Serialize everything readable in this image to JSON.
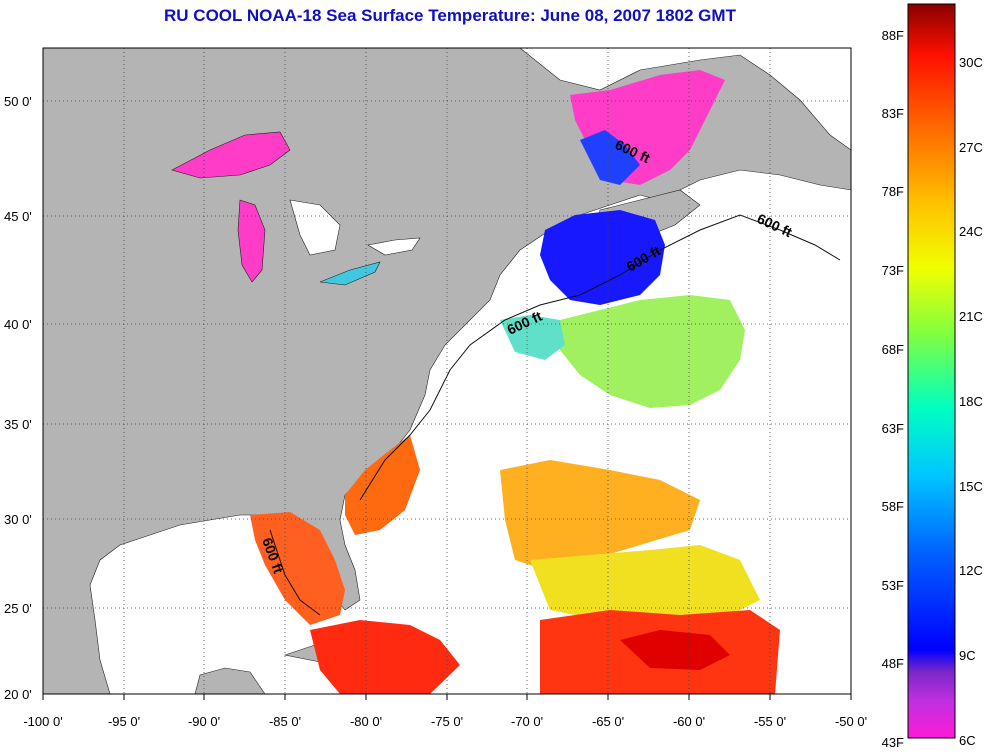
{
  "title": "RU COOL  NOAA-18  Sea Surface Temperature:  June 08, 2007 1802 GMT",
  "map": {
    "lon_labels": [
      "-100 0'",
      "-95 0'",
      "-90 0'",
      "-85 0'",
      "-80 0'",
      "-75 0'",
      "-70 0'",
      "-65 0'",
      "-60 0'",
      "-55 0'",
      "-50 0'"
    ],
    "lat_labels": [
      "50 0'",
      "45 0'",
      "40 0'",
      "35 0'",
      "30 0'",
      "25 0'",
      "20 0'"
    ],
    "contour_label": "600 ft",
    "colors": {
      "land": "#b4b4b4",
      "ocean_nodata": "#ffffff",
      "grid": "#404040"
    }
  },
  "colorbar": {
    "fahrenheit_labels": [
      "88F",
      "83F",
      "78F",
      "73F",
      "68F",
      "63F",
      "58F",
      "53F",
      "48F",
      "43F"
    ],
    "celsius_labels": [
      "30C",
      "27C",
      "24C",
      "21C",
      "18C",
      "15C",
      "12C",
      "9C",
      "6C"
    ],
    "range_celsius": [
      6,
      32
    ]
  }
}
